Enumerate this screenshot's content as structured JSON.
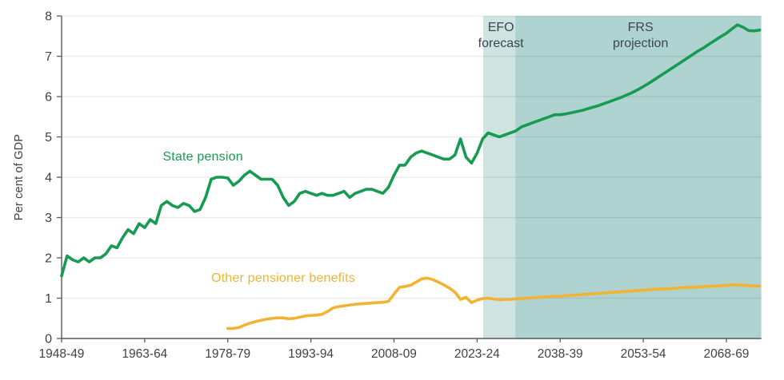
{
  "figure": {
    "y_axis_title": "Per cent of GDP",
    "series_labels": {
      "state_pension": "State pension",
      "other_pensioner_benefits": "Other pensioner benefits"
    },
    "band_labels": {
      "efo_line1": "EFO",
      "efo_line2": "forecast",
      "frs_line1": "FRS",
      "frs_line2": "projection"
    }
  },
  "chart_data": {
    "type": "line",
    "title": "",
    "xlabel": "",
    "ylabel": "Per cent of GDP",
    "ylim": [
      0,
      8
    ],
    "xlim": [
      1948,
      2074.3
    ],
    "y_ticks": [
      0,
      1,
      2,
      3,
      4,
      5,
      6,
      7,
      8
    ],
    "x_ticks": [
      1948,
      1963,
      1978,
      1993,
      2008,
      2023,
      2038,
      2053,
      2068
    ],
    "x_tick_labels": [
      "1948-49",
      "1963-64",
      "1978-79",
      "1993-94",
      "2008-09",
      "2023-24",
      "2038-39",
      "2053-54",
      "2068-69"
    ],
    "grid": "horizontal",
    "legend_position": "inline-annotations",
    "colors": {
      "state_pension": "#179a52",
      "other_pensioner_benefits": "#f2b332",
      "efo_band": "#cfe3e1",
      "frs_band": "#afd3d0",
      "gridline": "rgba(0,0,0,0.085)",
      "axis": "#595959",
      "tick_text": "#414042",
      "band_label_text": "#3b4650"
    },
    "bands": [
      {
        "label": "EFO forecast",
        "from": 2024.1,
        "to": 2029.9
      },
      {
        "label": "FRS projection",
        "from": 2029.9,
        "to": 2074.3
      }
    ],
    "series": [
      {
        "name": "State pension",
        "color": "#179a52",
        "start_year": 1948,
        "step_years": 1,
        "values": [
          1.55,
          2.05,
          1.95,
          1.9,
          2.0,
          1.9,
          2.0,
          2.0,
          2.1,
          2.3,
          2.25,
          2.5,
          2.7,
          2.6,
          2.85,
          2.75,
          2.95,
          2.85,
          3.3,
          3.4,
          3.3,
          3.25,
          3.35,
          3.3,
          3.15,
          3.2,
          3.5,
          3.95,
          4.0,
          4.0,
          3.98,
          3.8,
          3.9,
          4.05,
          4.15,
          4.05,
          3.95,
          3.95,
          3.95,
          3.8,
          3.5,
          3.3,
          3.4,
          3.6,
          3.65,
          3.6,
          3.55,
          3.6,
          3.55,
          3.55,
          3.6,
          3.65,
          3.5,
          3.6,
          3.65,
          3.7,
          3.7,
          3.65,
          3.6,
          3.75,
          4.05,
          4.3,
          4.3,
          4.5,
          4.6,
          4.65,
          4.6,
          4.55,
          4.5,
          4.45,
          4.45,
          4.55,
          4.95,
          4.5,
          4.35,
          4.6,
          4.95,
          5.1,
          5.05,
          5.0,
          5.05,
          5.1,
          5.15,
          5.25,
          5.3,
          5.35,
          5.4,
          5.45,
          5.5,
          5.55,
          5.55,
          5.57,
          5.6,
          5.63,
          5.66,
          5.7,
          5.74,
          5.78,
          5.83,
          5.88,
          5.93,
          5.98,
          6.04,
          6.1,
          6.17,
          6.25,
          6.33,
          6.42,
          6.51,
          6.6,
          6.69,
          6.78,
          6.87,
          6.96,
          7.05,
          7.14,
          7.22,
          7.31,
          7.4,
          7.49,
          7.57,
          7.68,
          7.78,
          7.72,
          7.64,
          7.63,
          7.65
        ]
      },
      {
        "name": "Other pensioner benefits",
        "color": "#f2b332",
        "start_year": 1978,
        "step_years": 1,
        "values": [
          0.25,
          0.25,
          0.27,
          0.33,
          0.38,
          0.42,
          0.45,
          0.48,
          0.5,
          0.51,
          0.51,
          0.49,
          0.5,
          0.53,
          0.56,
          0.57,
          0.58,
          0.6,
          0.67,
          0.76,
          0.79,
          0.81,
          0.83,
          0.85,
          0.86,
          0.87,
          0.88,
          0.89,
          0.9,
          0.92,
          1.1,
          1.27,
          1.29,
          1.32,
          1.4,
          1.48,
          1.5,
          1.46,
          1.4,
          1.33,
          1.25,
          1.15,
          0.97,
          1.02,
          0.89,
          0.95,
          0.99,
          1.0,
          0.98,
          0.96,
          0.97,
          0.97,
          0.98,
          0.99,
          1.0,
          1.01,
          1.02,
          1.03,
          1.04,
          1.05,
          1.05,
          1.06,
          1.07,
          1.08,
          1.09,
          1.1,
          1.11,
          1.12,
          1.13,
          1.14,
          1.15,
          1.16,
          1.17,
          1.18,
          1.19,
          1.2,
          1.21,
          1.22,
          1.23,
          1.23,
          1.24,
          1.25,
          1.26,
          1.27,
          1.27,
          1.28,
          1.29,
          1.3,
          1.3,
          1.31,
          1.32,
          1.33,
          1.33,
          1.32,
          1.31,
          1.3,
          1.3
        ]
      }
    ],
    "annotations": [
      {
        "id": "state-pension-label",
        "text": "State pension",
        "x": 1973.5,
        "y": 4.5
      },
      {
        "id": "other-benefits-label",
        "text": "Other pensioner benefits",
        "x": 1988,
        "y": 1.49
      },
      {
        "id": "efo-label",
        "text": "EFO forecast",
        "x": 2027.3,
        "y": 7.5
      },
      {
        "id": "frs-label",
        "text": "FRS projection",
        "x": 2052.5,
        "y": 7.5
      }
    ]
  }
}
